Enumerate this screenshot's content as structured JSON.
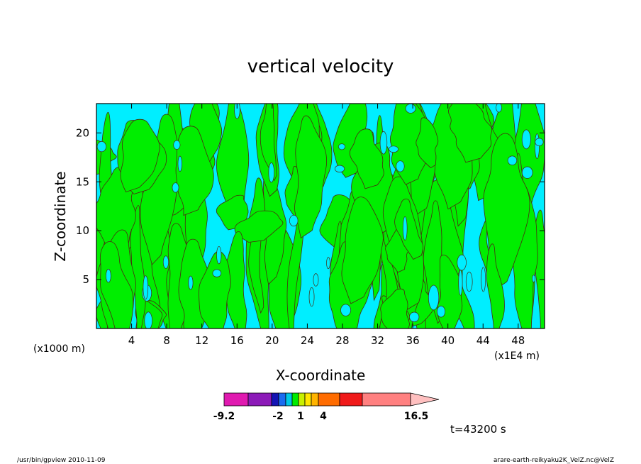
{
  "chart_data": {
    "type": "heatmap",
    "title": "vertical velocity",
    "xlabel": "X-coordinate",
    "ylabel": "Z-coordinate",
    "x_unit_left": "(x1000 m)",
    "x_unit_right": "(x1E4 m)",
    "x_ticks": [
      4,
      8,
      12,
      16,
      20,
      24,
      28,
      32,
      36,
      40,
      44,
      48
    ],
    "y_ticks": [
      5,
      10,
      15,
      20
    ],
    "xlim": [
      0,
      51
    ],
    "ylim": [
      0,
      23
    ],
    "colorbar": {
      "tick_labels": [
        "-9.2",
        "-2",
        "1",
        "4",
        "16.5"
      ],
      "tick_values": [
        -9.2,
        -2,
        1,
        4,
        16.5
      ],
      "colors": [
        "#e01ab0",
        "#8c1ab8",
        "#1414b4",
        "#1a6cf0",
        "#00c8e6",
        "#00ec00",
        "#c8f000",
        "#ffe600",
        "#ffb400",
        "#ff6c00",
        "#f01a1a",
        "#ff8080",
        "#ffc0c0"
      ]
    },
    "dominant_colors": {
      "negative": "#00eeff",
      "positive": "#00ee00"
    },
    "time_label": "t=43200 s"
  },
  "footer": {
    "left": "/usr/bin/gpview  2010-11-09",
    "right": "arare-earth-reikyaku2K_VelZ.nc@VelZ"
  }
}
